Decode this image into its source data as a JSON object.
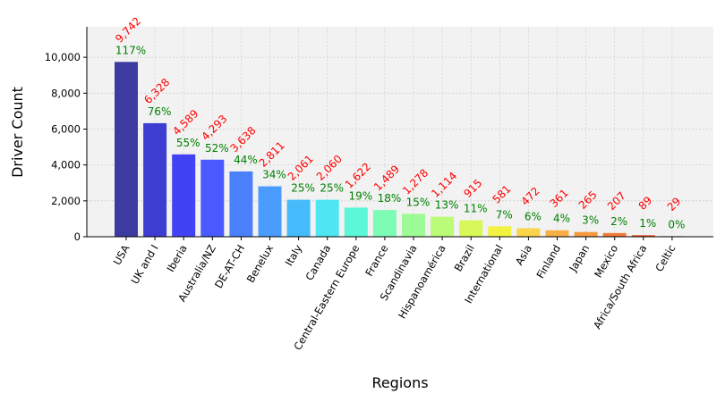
{
  "chart_data": {
    "type": "bar",
    "title": "",
    "xlabel": "Regions",
    "ylabel": "Driver Count",
    "ylim": [
      0,
      11700
    ],
    "yticks": [
      0,
      2000,
      4000,
      6000,
      8000,
      10000
    ],
    "ytick_labels": [
      "0",
      "2,000",
      "4,000",
      "6,000",
      "8,000",
      "10,000"
    ],
    "grid": true,
    "categories": [
      "USA",
      "UK and I",
      "Iberia",
      "Australia/NZ",
      "DE-AT-CH",
      "Benelux",
      "Italy",
      "Canada",
      "Central-Eastern Europe",
      "France",
      "Scandinavia",
      "Hispanoamérica",
      "Brazil",
      "International",
      "Asia",
      "Finland",
      "Japan",
      "Mexico",
      "Africa/South Africa",
      "Celtic"
    ],
    "values": [
      9742,
      6328,
      4589,
      4293,
      3638,
      2811,
      2061,
      2060,
      1622,
      1489,
      1278,
      1114,
      915,
      581,
      472,
      361,
      265,
      207,
      89,
      29
    ],
    "value_labels": [
      "9,742",
      "6,328",
      "4,589",
      "4,293",
      "3,638",
      "2,811",
      "2,061",
      "2,060",
      "1,622",
      "1,489",
      "1,278",
      "1,114",
      "915",
      "581",
      "472",
      "361",
      "265",
      "207",
      "89",
      "29"
    ],
    "percent_labels": [
      "117%",
      "76%",
      "55%",
      "52%",
      "44%",
      "34%",
      "25%",
      "25%",
      "19%",
      "18%",
      "15%",
      "13%",
      "11%",
      "7%",
      "6%",
      "4%",
      "3%",
      "2%",
      "1%",
      "0%"
    ],
    "colors": [
      "#3b3ba1",
      "#3d3dd2",
      "#4242f5",
      "#4a5afe",
      "#4a80fc",
      "#4a9dff",
      "#46bbfb",
      "#4ee6f2",
      "#5cf6d8",
      "#7cfcb4",
      "#9dfb95",
      "#bafc78",
      "#d8f85a",
      "#f2f243",
      "#fbd44a",
      "#f8b046",
      "#f59a3f",
      "#f07a38",
      "#e85a30",
      "#d83a28"
    ],
    "colors_meta": {
      "value_label": "#ff0000",
      "percent_label": "#008000",
      "plot_bg": "#f2f2f2",
      "grid": "#cccccc"
    }
  }
}
